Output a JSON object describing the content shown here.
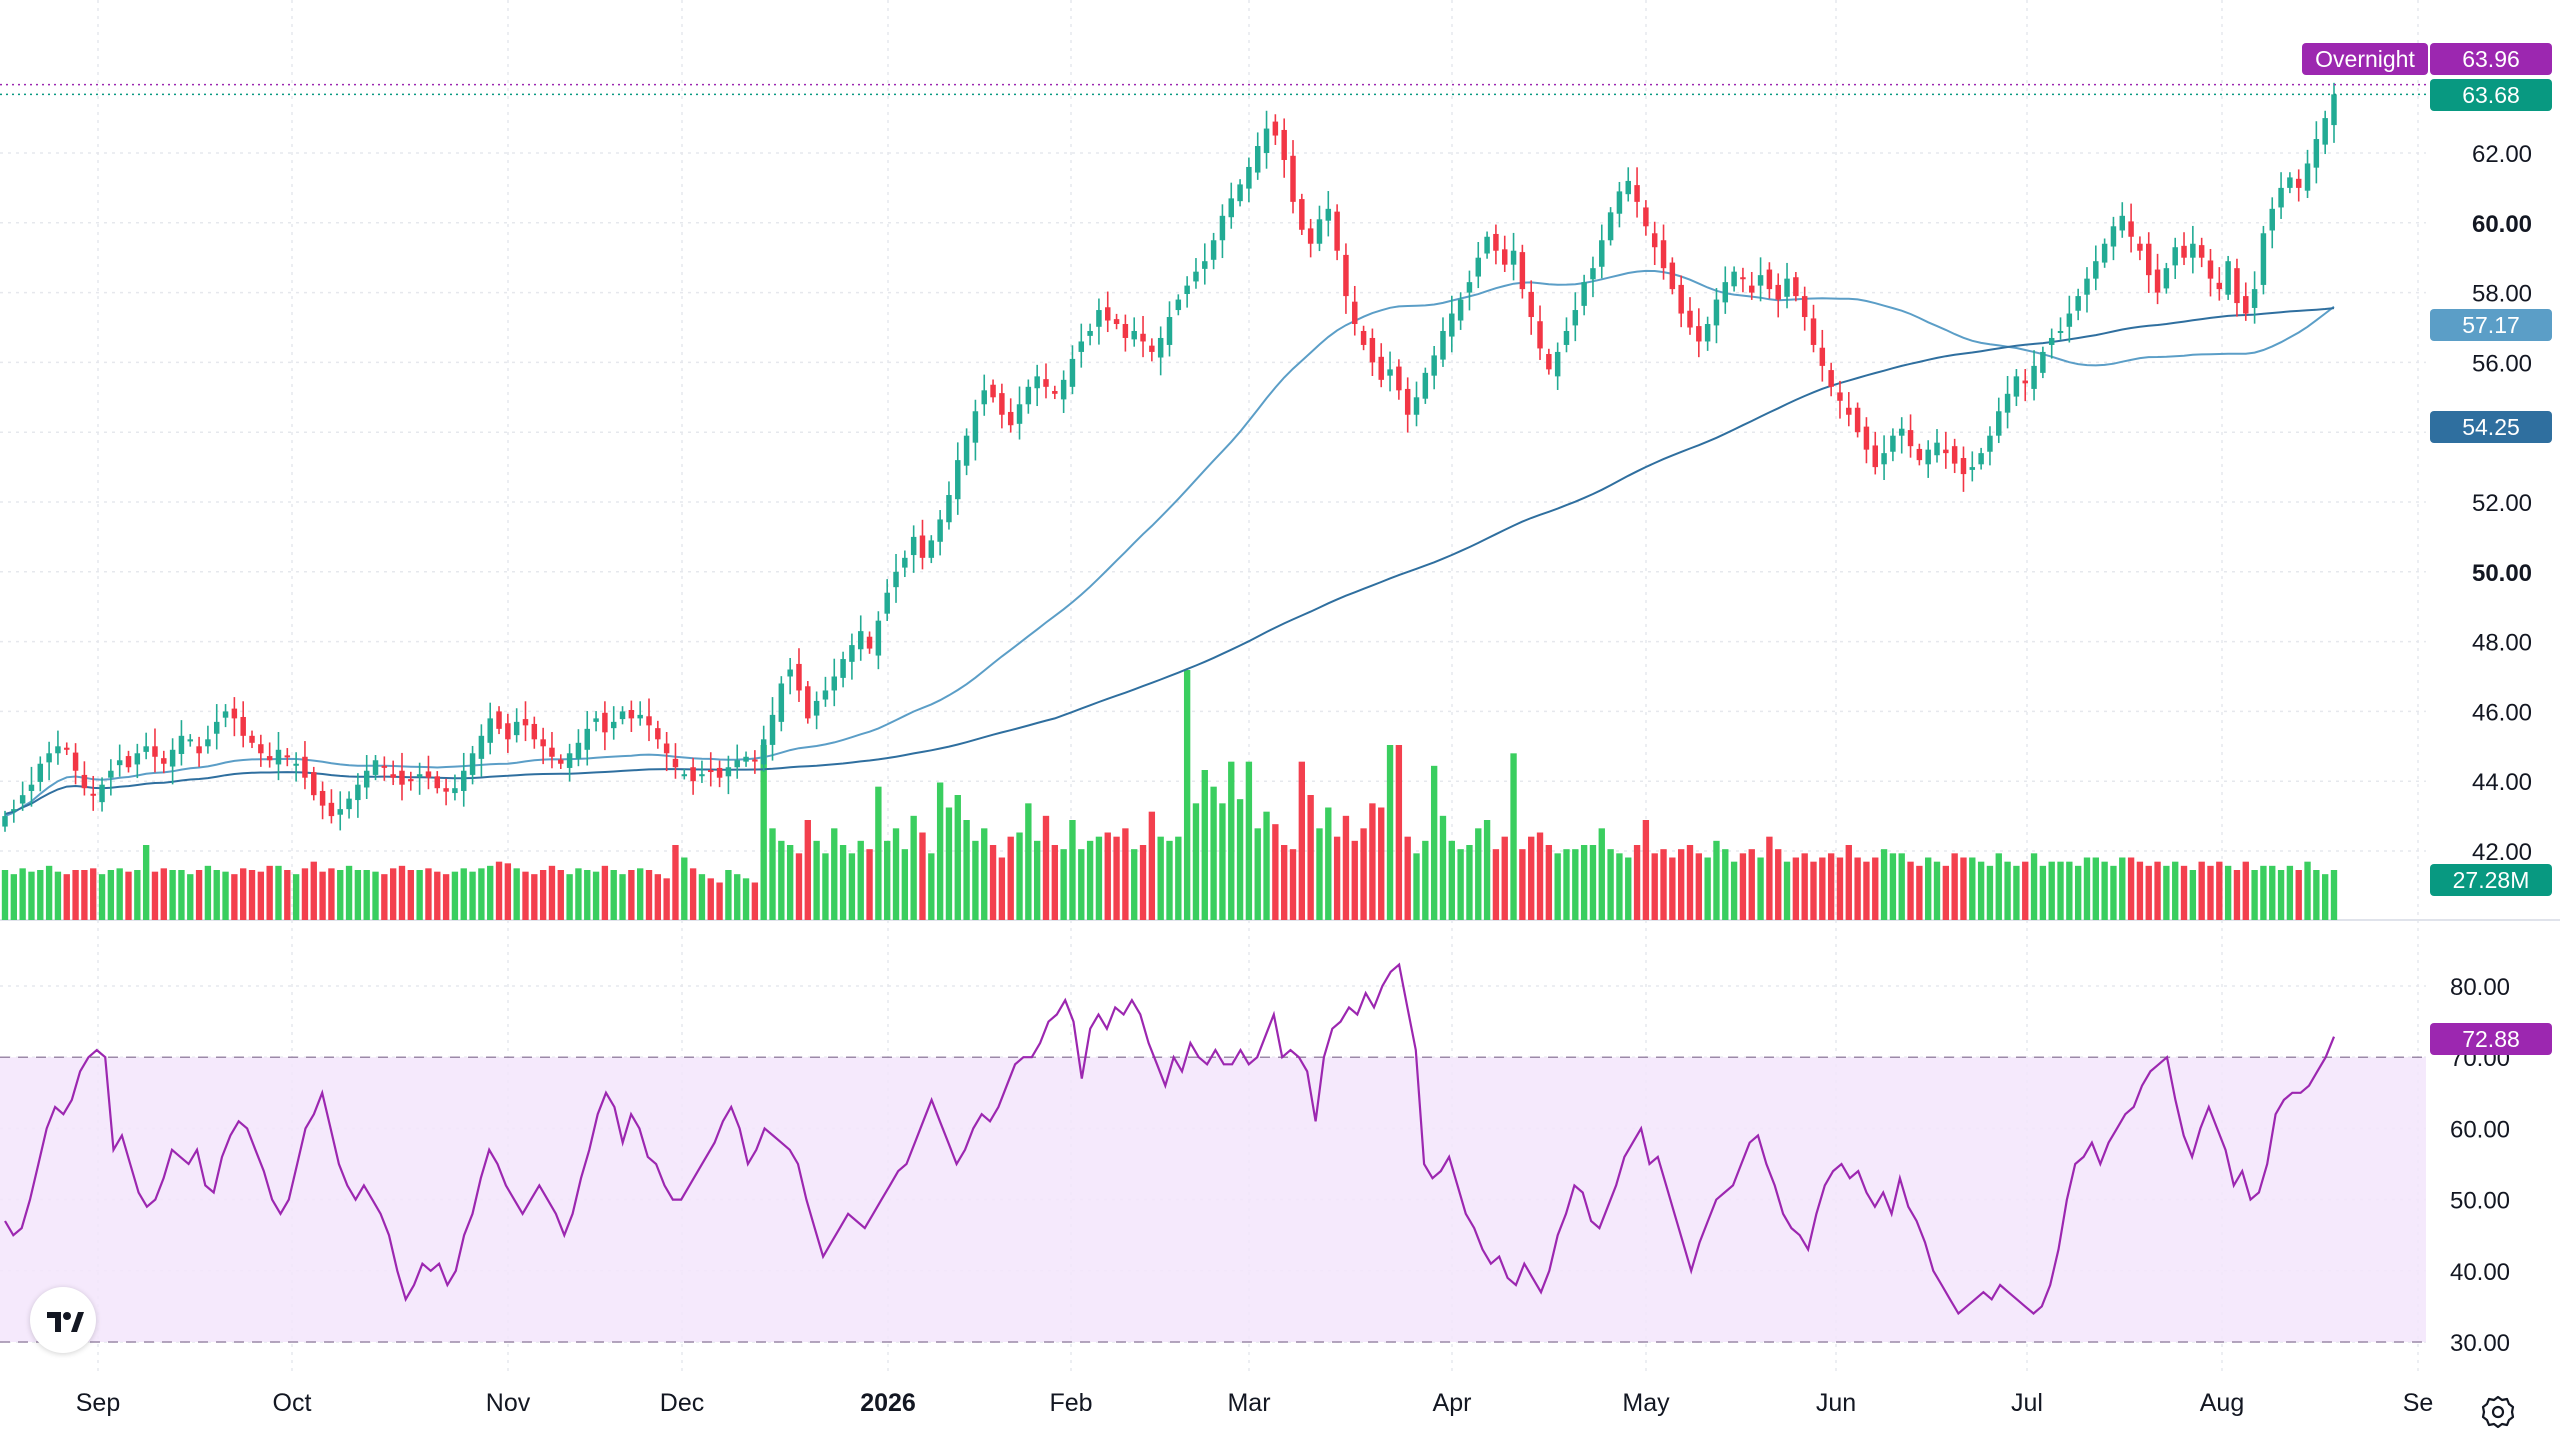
{
  "chart_data": [
    {
      "type": "candlestick",
      "x_labels": [
        "Sep",
        "Oct",
        "Nov",
        "Dec",
        "2026",
        "Feb",
        "Mar",
        "Apr",
        "May",
        "Jun",
        "Jul",
        "Aug",
        "Se"
      ],
      "x_label_bold": [
        "2026"
      ],
      "y_ticks": [
        42.0,
        44.0,
        46.0,
        48.0,
        50.0,
        52.0,
        54.0,
        56.0,
        58.0,
        60.0,
        62.0
      ],
      "y_tick_labels": [
        "42.00",
        "44.00",
        "46.00",
        "48.00",
        "50.00",
        "52.00",
        "54.00",
        "56.00",
        "58.00",
        "60.00",
        "62.00"
      ],
      "y_bold_ticks": [
        "50.00",
        "60.00"
      ],
      "ylim": [
        41.0,
        64.8
      ],
      "up_color": "#22ab94",
      "down_color": "#f23645",
      "closes": [
        43.0,
        43.2,
        43.6,
        43.9,
        44.5,
        44.8,
        45.0,
        44.9,
        44.3,
        43.8,
        43.6,
        43.9,
        44.3,
        44.6,
        44.4,
        44.8,
        45.0,
        44.7,
        44.5,
        44.9,
        45.3,
        45.2,
        44.8,
        45.2,
        45.7,
        46.0,
        45.8,
        45.3,
        45.1,
        44.8,
        44.6,
        44.9,
        44.7,
        44.5,
        44.1,
        43.6,
        43.3,
        43.0,
        43.2,
        43.5,
        43.9,
        44.3,
        44.6,
        44.4,
        44.1,
        43.9,
        44.0,
        44.2,
        44.1,
        43.8,
        43.7,
        43.8,
        44.3,
        44.8,
        45.3,
        45.8,
        45.5,
        45.2,
        45.7,
        45.6,
        45.2,
        45.0,
        44.7,
        44.5,
        44.8,
        45.1,
        45.5,
        45.8,
        45.4,
        45.7,
        46.0,
        45.8,
        45.9,
        45.6,
        45.2,
        44.8,
        44.4,
        44.2,
        44.0,
        44.2,
        44.3,
        44.1,
        44.4,
        44.6,
        44.7,
        44.6,
        45.2,
        45.9,
        46.8,
        47.2,
        46.6,
        45.8,
        46.3,
        46.6,
        47.0,
        47.5,
        47.9,
        48.3,
        47.8,
        48.6,
        49.4,
        50.0,
        50.4,
        51.0,
        50.4,
        50.9,
        51.5,
        52.2,
        53.2,
        53.9,
        54.6,
        55.2,
        55.0,
        54.5,
        54.2,
        54.8,
        55.3,
        55.6,
        55.3,
        55.1,
        55.5,
        56.1,
        56.6,
        56.9,
        57.5,
        57.2,
        57.1,
        56.7,
        56.9,
        56.6,
        56.3,
        56.7,
        57.3,
        57.8,
        58.2,
        58.6,
        58.9,
        59.5,
        60.2,
        60.7,
        61.1,
        61.6,
        62.2,
        62.7,
        62.5,
        61.8,
        60.6,
        59.8,
        59.4,
        60.1,
        60.4,
        59.2,
        57.9,
        57.1,
        56.5,
        56.0,
        55.5,
        55.8,
        55.2,
        54.5,
        55.0,
        55.7,
        56.2,
        56.9,
        57.4,
        57.8,
        58.3,
        59.0,
        59.6,
        59.2,
        58.8,
        59.2,
        58.1,
        57.3,
        56.4,
        55.8,
        56.3,
        56.9,
        57.5,
        58.3,
        58.7,
        59.5,
        60.3,
        60.9,
        61.2,
        60.6,
        59.9,
        59.3,
        58.7,
        58.1,
        57.4,
        57.0,
        56.6,
        57.1,
        57.8,
        58.3,
        58.6,
        58.4,
        58.0,
        58.5,
        58.1,
        57.8,
        58.4,
        57.9,
        57.3,
        56.5,
        55.9,
        55.3,
        54.9,
        54.5,
        54.0,
        53.5,
        53.0,
        53.4,
        53.9,
        54.1,
        53.6,
        53.2,
        53.5,
        53.7,
        53.4,
        53.1,
        52.8,
        53.0,
        53.4,
        53.9,
        54.6,
        55.1,
        55.6,
        55.4,
        55.9,
        56.3,
        56.7,
        56.9,
        57.4,
        57.9,
        58.4,
        58.9,
        59.4,
        59.9,
        60.2,
        59.6,
        59.2,
        58.5,
        58.0,
        58.7,
        59.3,
        59.0,
        59.4,
        59.0,
        58.4,
        58.1,
        58.9,
        57.7,
        57.4,
        58.1,
        59.7,
        60.4,
        61.0,
        61.3,
        61.0,
        61.7,
        62.4,
        63.0,
        63.68
      ],
      "volume_relative": [
        0.6,
        0.55,
        0.62,
        0.58,
        0.6,
        0.65,
        0.58,
        0.55,
        0.6,
        0.6,
        0.62,
        0.55,
        0.6,
        0.62,
        0.58,
        0.6,
        0.9,
        0.58,
        0.62,
        0.6,
        0.6,
        0.55,
        0.6,
        0.65,
        0.6,
        0.58,
        0.55,
        0.62,
        0.6,
        0.58,
        0.65,
        0.65,
        0.6,
        0.55,
        0.62,
        0.7,
        0.58,
        0.62,
        0.6,
        0.65,
        0.6,
        0.6,
        0.58,
        0.55,
        0.62,
        0.65,
        0.6,
        0.6,
        0.62,
        0.58,
        0.55,
        0.58,
        0.62,
        0.58,
        0.62,
        0.65,
        0.7,
        0.68,
        0.62,
        0.58,
        0.55,
        0.6,
        0.65,
        0.6,
        0.55,
        0.62,
        0.6,
        0.58,
        0.65,
        0.6,
        0.55,
        0.6,
        0.62,
        0.6,
        0.55,
        0.5,
        0.9,
        0.75,
        0.62,
        0.55,
        0.5,
        0.45,
        0.6,
        0.55,
        0.5,
        0.45,
        2.1,
        1.1,
        0.95,
        0.9,
        0.8,
        1.2,
        0.95,
        0.8,
        1.1,
        0.9,
        0.8,
        0.95,
        0.85,
        1.6,
        0.95,
        1.1,
        0.85,
        1.25,
        1.05,
        0.8,
        1.65,
        1.35,
        1.5,
        1.2,
        0.95,
        1.1,
        0.9,
        0.75,
        1.0,
        1.05,
        1.4,
        0.95,
        1.25,
        0.9,
        0.85,
        1.2,
        0.85,
        0.95,
        1.0,
        1.05,
        1.0,
        1.1,
        0.85,
        0.9,
        1.3,
        1.0,
        0.95,
        1.0,
        3.0,
        1.4,
        1.8,
        1.6,
        1.4,
        1.9,
        1.45,
        1.9,
        1.1,
        1.3,
        1.15,
        0.9,
        0.85,
        1.9,
        1.5,
        1.1,
        1.35,
        1.0,
        1.25,
        0.95,
        1.1,
        1.4,
        1.35,
        2.1,
        2.1,
        1.0,
        0.8,
        0.95,
        1.85,
        1.25,
        0.95,
        0.85,
        0.9,
        1.1,
        1.2,
        0.85,
        1.0,
        2.0,
        0.85,
        1.0,
        1.05,
        0.9,
        0.8,
        0.85,
        0.85,
        0.9,
        0.9,
        1.1,
        0.85,
        0.8,
        0.75,
        0.9,
        1.2,
        0.8,
        0.85,
        0.75,
        0.85,
        0.9,
        0.8,
        0.75,
        0.95,
        0.85,
        0.7,
        0.8,
        0.85,
        0.75,
        1.0,
        0.85,
        0.7,
        0.75,
        0.8,
        0.7,
        0.75,
        0.8,
        0.75,
        0.9,
        0.75,
        0.7,
        0.75,
        0.85,
        0.8,
        0.8,
        0.7,
        0.65,
        0.75,
        0.7,
        0.65,
        0.8,
        0.75,
        0.75,
        0.7,
        0.65,
        0.8,
        0.7,
        0.65,
        0.7,
        0.8,
        0.65,
        0.7,
        0.7,
        0.7,
        0.65,
        0.75,
        0.75,
        0.7,
        0.65,
        0.75,
        0.75,
        0.7,
        0.65,
        0.7,
        0.65,
        0.7,
        0.65,
        0.6,
        0.7,
        0.65,
        0.7,
        0.65,
        0.6,
        0.7,
        0.6,
        0.65,
        0.65,
        0.6,
        0.65,
        0.6,
        0.7,
        0.6,
        0.55,
        0.6,
        0.65,
        0.55,
        0.6,
        0.6
      ],
      "ma_fast": {
        "name": "",
        "value_label": "57.17",
        "color": "#5b9ec7"
      },
      "ma_slow": {
        "name": "",
        "value_label": "54.25",
        "color": "#2f6f9f"
      },
      "last_price_label": "63.68",
      "last_price_color": "#089981",
      "overnight": {
        "label": "Overnight",
        "value_label": "63.96",
        "value": 63.96,
        "color": "#9c27b0"
      },
      "volume_label": "27.28M"
    },
    {
      "type": "line",
      "name": "",
      "y_ticks": [
        30.0,
        40.0,
        50.0,
        60.0,
        70.0,
        80.0
      ],
      "y_tick_labels": [
        "30.00",
        "40.00",
        "50.00",
        "60.00",
        "70.00",
        "80.00"
      ],
      "ylim": [
        28.0,
        84.0
      ],
      "band": [
        30.0,
        70.0
      ],
      "values": [
        47,
        45,
        46,
        50,
        55,
        60,
        63,
        62,
        64,
        68,
        70,
        71,
        70,
        57,
        59,
        55,
        51,
        49,
        50,
        53,
        57,
        56,
        55,
        57,
        52,
        51,
        56,
        59,
        61,
        60,
        57,
        54,
        50,
        48,
        50,
        55,
        60,
        62,
        65,
        60,
        55,
        52,
        50,
        52,
        50,
        48,
        45,
        40,
        36,
        38,
        41,
        40,
        41,
        38,
        40,
        45,
        48,
        53,
        57,
        55,
        52,
        50,
        48,
        50,
        52,
        50,
        48,
        45,
        48,
        53,
        57,
        62,
        65,
        63,
        58,
        62,
        60,
        56,
        55,
        52,
        50,
        50,
        52,
        54,
        56,
        58,
        61,
        63,
        60,
        55,
        57,
        60,
        59,
        58,
        57,
        55,
        50,
        46,
        42,
        44,
        46,
        48,
        47,
        46,
        48,
        50,
        52,
        54,
        55,
        58,
        61,
        64,
        61,
        58,
        55,
        57,
        60,
        62,
        61,
        63,
        66,
        69,
        70,
        70,
        72,
        75,
        76,
        78,
        75,
        67,
        74,
        76,
        74,
        77,
        76,
        78,
        76,
        72,
        69,
        66,
        70,
        68,
        72,
        70,
        69,
        71,
        69,
        69,
        71,
        69,
        70,
        73,
        76,
        70,
        71,
        70,
        68,
        61,
        70,
        74,
        75,
        77,
        76,
        79,
        77,
        80,
        82,
        83,
        77,
        71,
        55,
        53,
        54,
        56,
        52,
        48,
        46,
        43,
        41,
        42,
        39,
        38,
        41,
        39,
        37,
        40,
        45,
        48,
        52,
        51,
        47,
        46,
        49,
        52,
        56,
        58,
        60,
        55,
        56,
        52,
        48,
        44,
        40,
        44,
        47,
        50,
        51,
        52,
        55,
        58,
        59,
        55,
        52,
        48,
        46,
        45,
        43,
        48,
        52,
        54,
        55,
        53,
        54,
        51,
        49,
        51,
        48,
        53,
        49,
        47,
        44,
        40,
        38,
        36,
        34,
        35,
        36,
        37,
        36,
        38,
        37,
        36,
        35,
        34,
        35,
        38,
        43,
        50,
        55,
        56,
        58,
        55,
        58,
        60,
        62,
        63,
        66,
        68,
        69,
        70,
        64,
        59,
        56,
        60,
        63,
        60,
        57,
        52,
        54,
        50,
        51,
        55,
        62,
        64,
        65,
        65,
        66,
        68,
        70,
        72.88
      ],
      "value_label": "72.88",
      "color": "#9c27b0"
    }
  ],
  "brand": {
    "logo_text": "TV"
  },
  "settings": {
    "icon": "gear-icon"
  }
}
